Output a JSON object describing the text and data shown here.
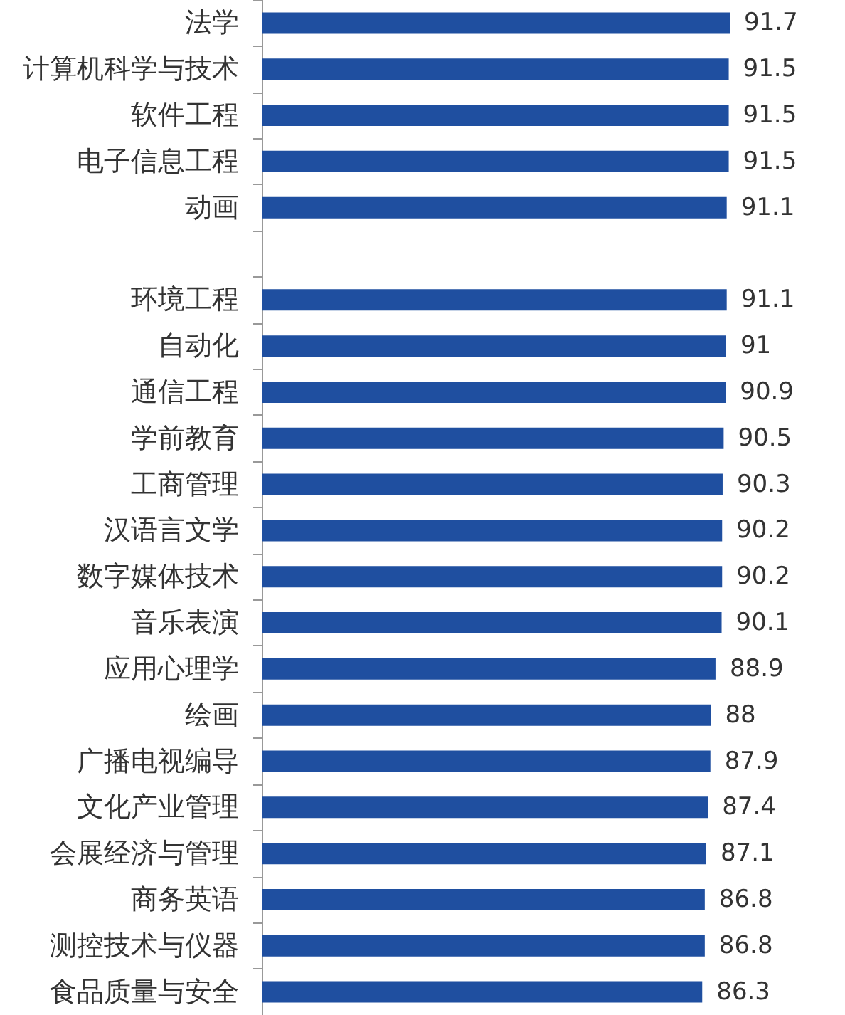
{
  "chart_data": {
    "type": "bar",
    "orientation": "horizontal",
    "categories": [
      "法学",
      "计算机科学与技术",
      "软件工程",
      "电子信息工程",
      "动画",
      null,
      "环境工程",
      "自动化",
      "通信工程",
      "学前教育",
      "工商管理",
      "汉语言文学",
      "数字媒体技术",
      "音乐表演",
      "应用心理学",
      "绘画",
      "广播电视编导",
      "文化产业管理",
      "会展经济与管理",
      "商务英语",
      "测控技术与仪器",
      "食品质量与安全"
    ],
    "values": [
      91.7,
      91.5,
      91.5,
      91.5,
      91.1,
      null,
      91.1,
      91,
      90.9,
      90.5,
      90.3,
      90.2,
      90.2,
      90.1,
      88.9,
      88,
      87.9,
      87.4,
      87.1,
      86.8,
      86.8,
      86.3
    ],
    "color": "#1f4fa0",
    "data_labels": true,
    "tick_labels": "y",
    "grid": false
  }
}
